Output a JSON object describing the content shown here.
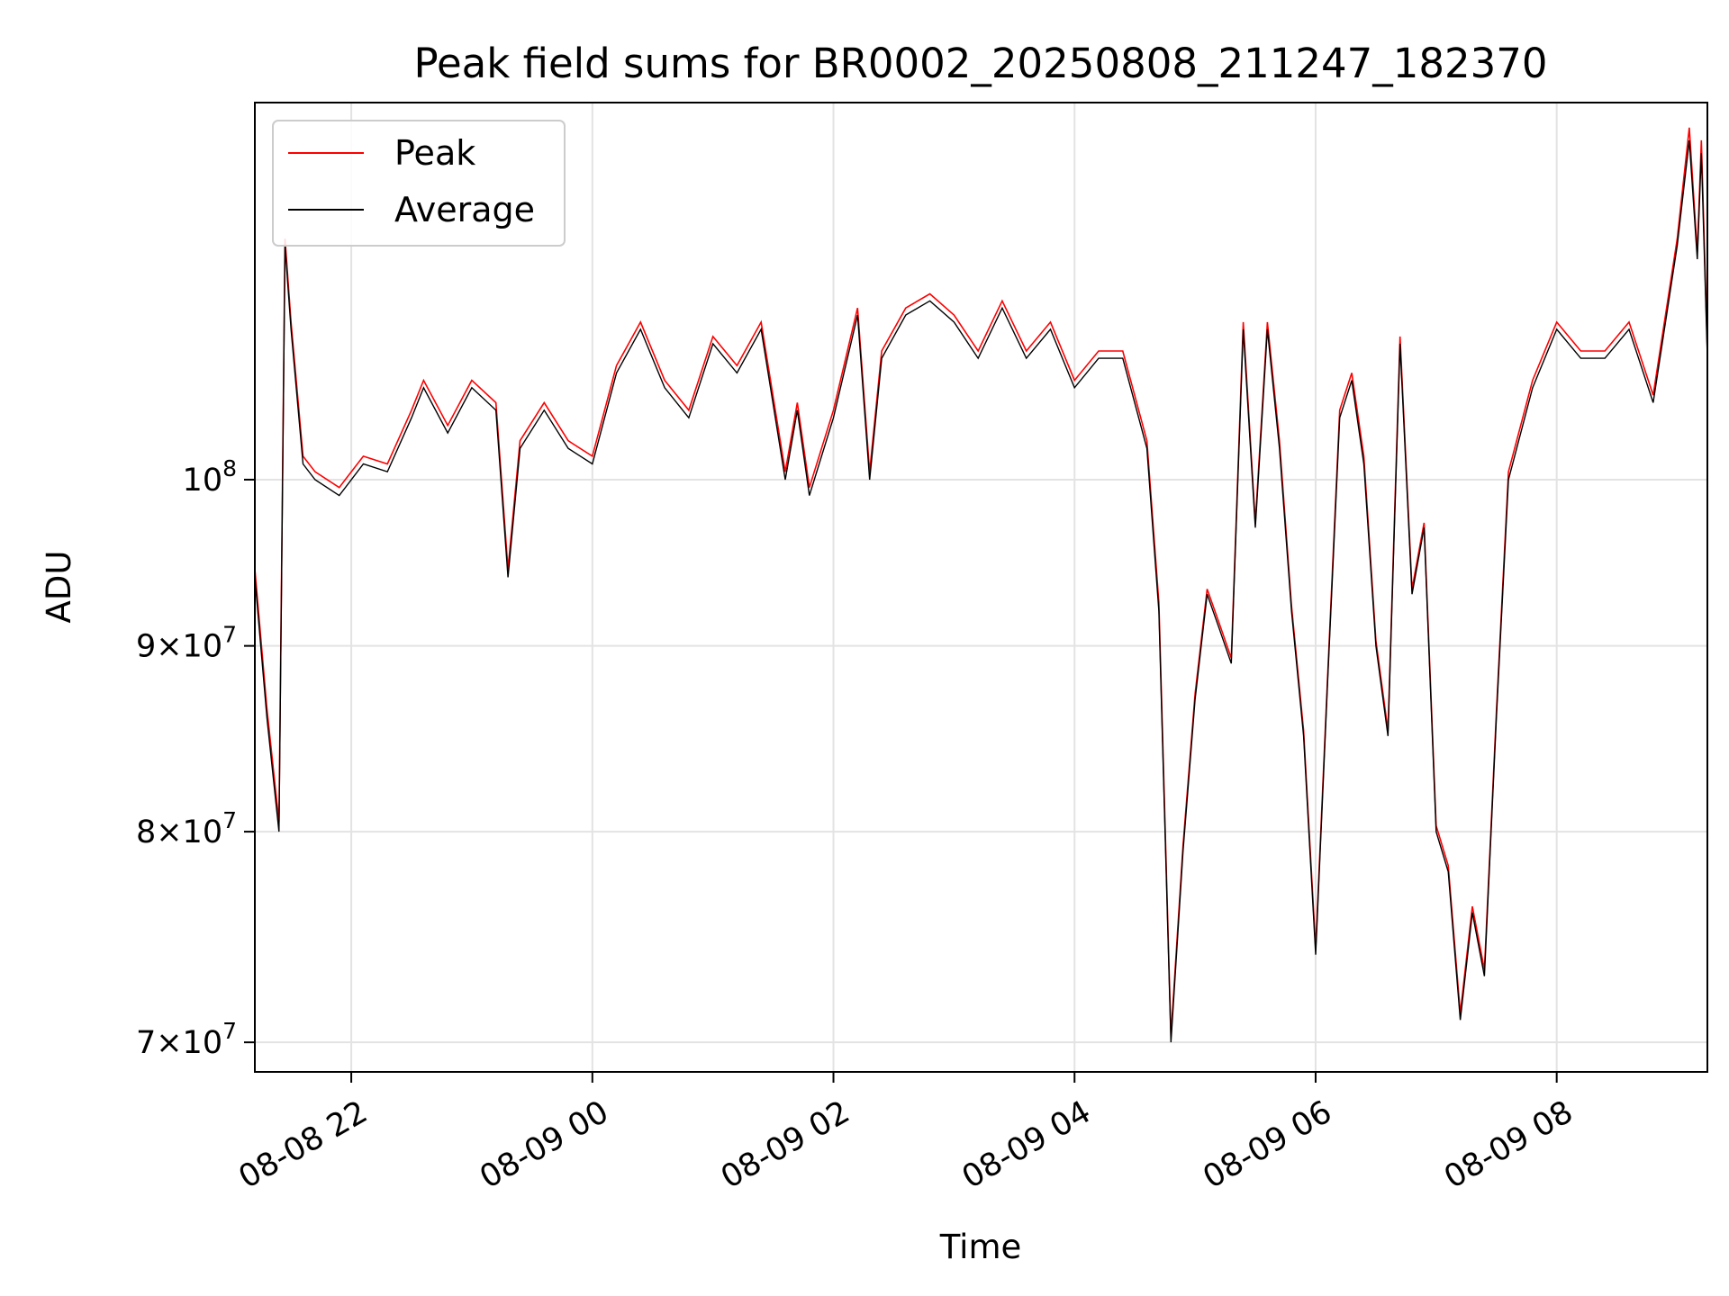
{
  "chart_data": {
    "type": "line",
    "title": "Peak field sums for BR0002_20250808_211247_182370",
    "xlabel": "Time",
    "ylabel": "ADU",
    "y_scale": "log",
    "xlim": [
      "2025-08-08 21:12",
      "2025-08-09 09:15"
    ],
    "ylim": [
      68700000,
      127000000
    ],
    "grid": true,
    "legend_position": "top-left",
    "x_ticks": [
      {
        "value": "2025-08-08 22:00",
        "label": "08-08 22"
      },
      {
        "value": "2025-08-09 00:00",
        "label": "08-09 00"
      },
      {
        "value": "2025-08-09 02:00",
        "label": "08-09 02"
      },
      {
        "value": "2025-08-09 04:00",
        "label": "08-09 04"
      },
      {
        "value": "2025-08-09 06:00",
        "label": "08-09 06"
      },
      {
        "value": "2025-08-09 08:00",
        "label": "08-09 08"
      }
    ],
    "y_ticks": [
      {
        "value": 70000000,
        "mantissa": "7",
        "exponent": "7"
      },
      {
        "value": 80000000,
        "mantissa": "8",
        "exponent": "7"
      },
      {
        "value": 90000000,
        "mantissa": "9",
        "exponent": "7"
      },
      {
        "value": 100000000,
        "mantissa": "",
        "exponent": "8"
      }
    ],
    "series": [
      {
        "name": "Peak",
        "color": "#ff0000"
      },
      {
        "name": "Average",
        "color": "#000000"
      }
    ],
    "x": [
      "2025-08-08 21:12",
      "2025-08-08 21:18",
      "2025-08-08 21:24",
      "2025-08-08 21:27",
      "2025-08-08 21:30",
      "2025-08-08 21:36",
      "2025-08-08 21:42",
      "2025-08-08 21:54",
      "2025-08-08 22:06",
      "2025-08-08 22:18",
      "2025-08-08 22:30",
      "2025-08-08 22:36",
      "2025-08-08 22:48",
      "2025-08-08 23:00",
      "2025-08-08 23:12",
      "2025-08-08 23:18",
      "2025-08-08 23:24",
      "2025-08-08 23:36",
      "2025-08-08 23:48",
      "2025-08-09 00:00",
      "2025-08-09 00:12",
      "2025-08-09 00:24",
      "2025-08-09 00:36",
      "2025-08-09 00:48",
      "2025-08-09 01:00",
      "2025-08-09 01:12",
      "2025-08-09 01:24",
      "2025-08-09 01:36",
      "2025-08-09 01:42",
      "2025-08-09 01:48",
      "2025-08-09 02:00",
      "2025-08-09 02:12",
      "2025-08-09 02:18",
      "2025-08-09 02:24",
      "2025-08-09 02:36",
      "2025-08-09 02:48",
      "2025-08-09 03:00",
      "2025-08-09 03:12",
      "2025-08-09 03:24",
      "2025-08-09 03:36",
      "2025-08-09 03:48",
      "2025-08-09 04:00",
      "2025-08-09 04:12",
      "2025-08-09 04:24",
      "2025-08-09 04:36",
      "2025-08-09 04:42",
      "2025-08-09 04:48",
      "2025-08-09 04:54",
      "2025-08-09 05:00",
      "2025-08-09 05:06",
      "2025-08-09 05:12",
      "2025-08-09 05:18",
      "2025-08-09 05:24",
      "2025-08-09 05:30",
      "2025-08-09 05:36",
      "2025-08-09 05:42",
      "2025-08-09 05:48",
      "2025-08-09 05:54",
      "2025-08-09 06:00",
      "2025-08-09 06:06",
      "2025-08-09 06:12",
      "2025-08-09 06:18",
      "2025-08-09 06:24",
      "2025-08-09 06:30",
      "2025-08-09 06:36",
      "2025-08-09 06:42",
      "2025-08-09 06:48",
      "2025-08-09 06:54",
      "2025-08-09 07:00",
      "2025-08-09 07:06",
      "2025-08-09 07:12",
      "2025-08-09 07:18",
      "2025-08-09 07:24",
      "2025-08-09 07:30",
      "2025-08-09 07:36",
      "2025-08-09 07:48",
      "2025-08-09 08:00",
      "2025-08-09 08:12",
      "2025-08-09 08:24",
      "2025-08-09 08:36",
      "2025-08-09 08:48",
      "2025-08-09 09:00",
      "2025-08-09 09:06",
      "2025-08-09 09:10",
      "2025-08-09 09:12",
      "2025-08-09 09:15"
    ],
    "y_average": [
      94000000,
      86000000,
      80000000,
      116000000,
      110000000,
      101000000,
      100000000,
      99000000,
      101000000,
      100500000,
      104000000,
      106000000,
      103000000,
      106000000,
      104500000,
      94000000,
      102000000,
      104500000,
      102000000,
      101000000,
      107000000,
      110000000,
      106000000,
      104000000,
      109000000,
      107000000,
      110000000,
      100000000,
      104500000,
      99000000,
      104000000,
      111000000,
      100000000,
      108000000,
      111000000,
      112000000,
      110500000,
      108000000,
      111500000,
      108000000,
      110000000,
      106000000,
      108000000,
      108000000,
      102000000,
      92000000,
      70000000,
      79000000,
      87000000,
      93000000,
      91000000,
      89000000,
      110000000,
      97000000,
      110000000,
      102000000,
      92000000,
      85000000,
      74000000,
      88000000,
      104000000,
      106500000,
      101000000,
      90000000,
      85000000,
      109000000,
      93000000,
      97000000,
      80000000,
      78000000,
      71000000,
      76000000,
      73000000,
      86000000,
      100000000,
      106000000,
      110000000,
      108000000,
      108000000,
      110000000,
      105000000,
      116000000,
      124000000,
      115000000,
      123000000,
      108000000
    ],
    "y_peak": [
      94500000,
      86500000,
      80500000,
      116500000,
      110500000,
      101500000,
      100500000,
      99500000,
      101500000,
      101000000,
      104500000,
      106500000,
      103500000,
      106500000,
      105000000,
      94500000,
      102500000,
      105000000,
      102500000,
      101500000,
      107500000,
      110500000,
      106500000,
      104500000,
      109500000,
      107500000,
      110500000,
      100500000,
      105000000,
      99500000,
      104500000,
      111500000,
      100500000,
      108500000,
      111500000,
      112500000,
      111000000,
      108500000,
      112000000,
      108500000,
      110500000,
      106500000,
      108500000,
      108500000,
      102500000,
      92500000,
      70300000,
      79300000,
      87300000,
      93300000,
      91300000,
      89300000,
      110500000,
      97300000,
      110500000,
      102500000,
      92300000,
      85300000,
      74300000,
      88300000,
      104500000,
      107000000,
      101500000,
      90300000,
      85300000,
      109500000,
      93300000,
      97300000,
      80300000,
      78300000,
      71300000,
      76300000,
      73300000,
      86300000,
      100500000,
      106500000,
      110500000,
      108500000,
      108500000,
      110500000,
      105500000,
      116500000,
      125000000,
      115500000,
      124000000,
      108500000
    ]
  }
}
